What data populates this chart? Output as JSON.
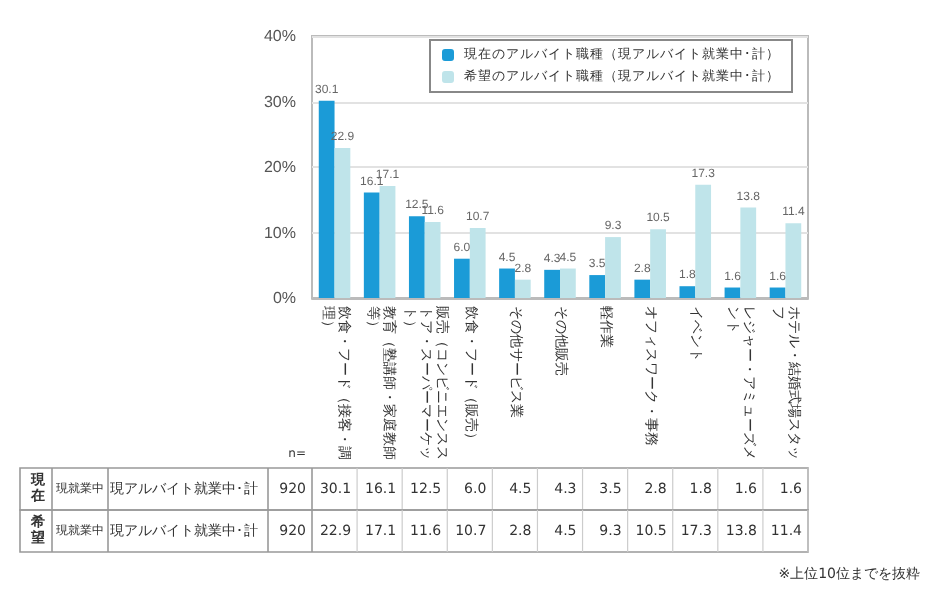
{
  "chart_data": {
    "type": "bar",
    "categories": [
      "飲食・フード（接客・調理）",
      "教育（塾講師・家庭教師等）",
      "販売（コンビニエンスストア・スーパーマーケット）",
      "飲食・フード（販売）",
      "その他サービス業",
      "その他販売",
      "軽作業",
      "オフィスワーク・事務",
      "イベント",
      "レジャー・アミューズメント",
      "ホテル・結婚式場スタッフ"
    ],
    "series": [
      {
        "name": "現在のアルバイト職種（現アルバイト就業中･計）",
        "color": "#1b9bd7",
        "values": [
          30.1,
          16.1,
          12.5,
          6.0,
          4.5,
          4.3,
          3.5,
          2.8,
          1.8,
          1.6,
          1.6
        ],
        "value_labels": [
          "30.1",
          "16.1",
          "12.5",
          "6.0",
          "4.5",
          "4.3",
          "3.5",
          "2.8",
          "1.8",
          "1.6",
          "1.6"
        ]
      },
      {
        "name": "希望のアルバイト職種（現アルバイト就業中･計）",
        "color": "#bfe4ea",
        "values": [
          22.9,
          17.1,
          11.6,
          10.7,
          2.8,
          4.5,
          9.3,
          10.5,
          17.3,
          13.8,
          11.4
        ],
        "value_labels": [
          "22.9",
          "17.1",
          "11.6",
          "10.7",
          "2.8",
          "4.5",
          "9.3",
          "10.5",
          "17.3",
          "13.8",
          "11.4"
        ]
      }
    ],
    "ylim": [
      0,
      40
    ],
    "yticks": [
      {
        "value": 0,
        "label": "0%"
      },
      {
        "value": 10,
        "label": "10%"
      },
      {
        "value": 20,
        "label": "20%"
      },
      {
        "value": 30,
        "label": "30%"
      },
      {
        "value": 40,
        "label": "40%"
      }
    ],
    "grid": "y",
    "legend": "top right",
    "data_labels": true,
    "annotations": [
      "n=",
      "現在",
      "現就業中",
      "現アルバイト就業中･計",
      "920",
      "希望",
      "現就業中",
      "現アルバイト就業中･計",
      "920",
      "※上位10位までを抜粋"
    ]
  }
}
